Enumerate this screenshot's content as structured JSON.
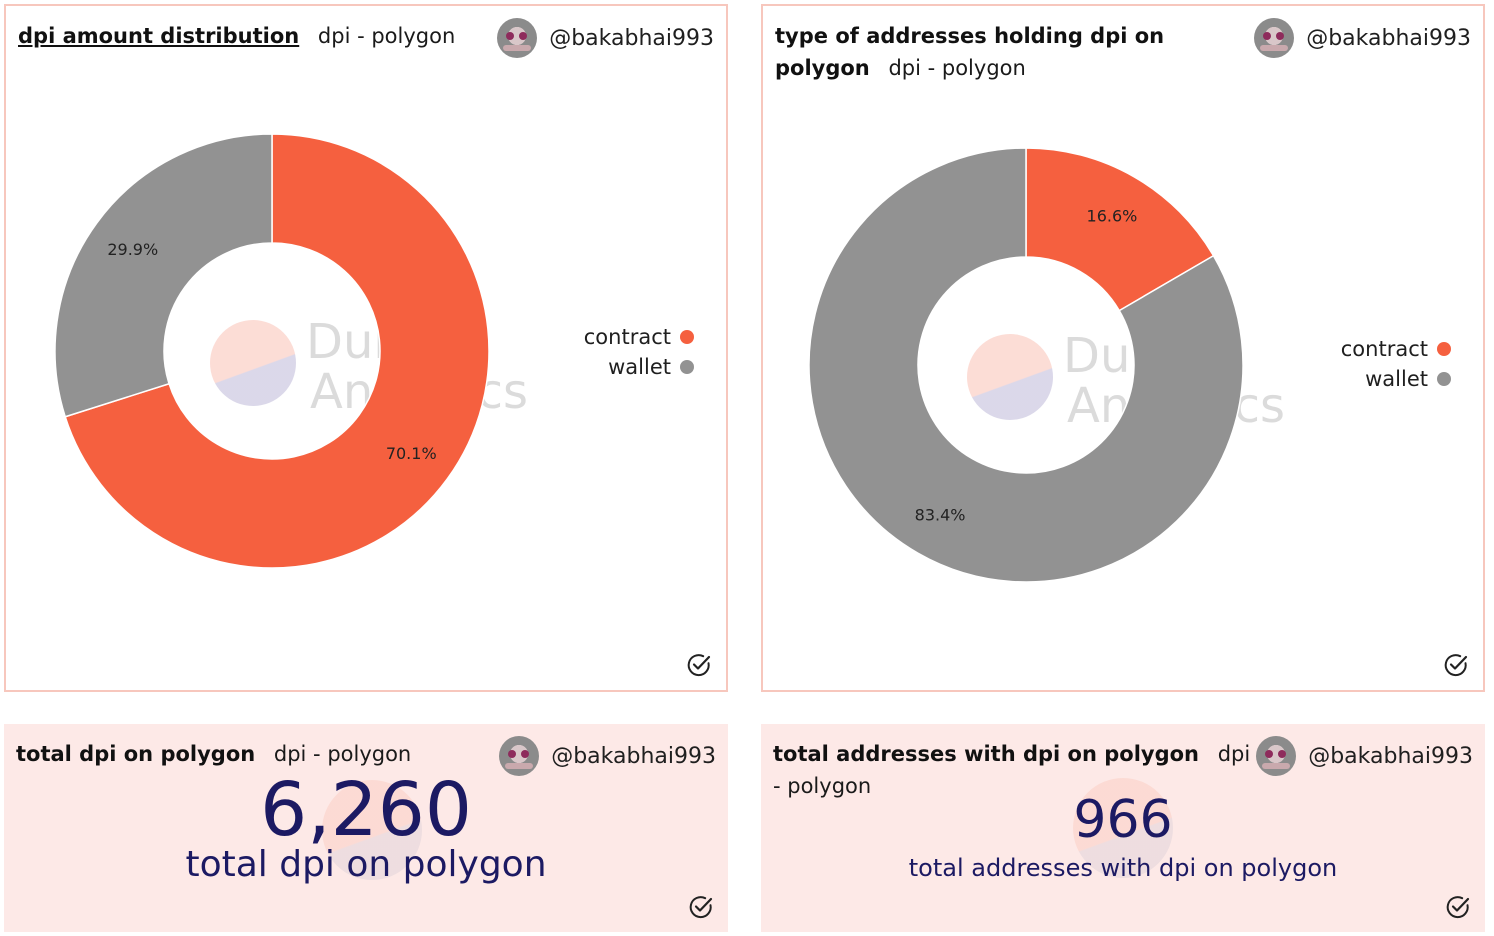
{
  "cards": [
    {
      "title": "dpi amount distribution",
      "subtitle": "dpi - polygon",
      "author": "@bakabhai993"
    },
    {
      "title": "type of addresses holding dpi on polygon",
      "subtitle": "dpi - polygon",
      "author": "@bakabhai993"
    },
    {
      "title": "total dpi on polygon",
      "subtitle": "dpi - polygon",
      "author": "@bakabhai993",
      "value": "6,260",
      "label": "total dpi on polygon"
    },
    {
      "title": "total addresses with dpi on polygon",
      "subtitle": "dpi - polygon",
      "author": "@bakabhai993",
      "value": "966",
      "label": "total addresses with dpi on polygon"
    }
  ],
  "watermark": {
    "line1": "Dune",
    "line2": "Analytics"
  },
  "colors": {
    "contract": "#f5603f",
    "wallet": "#929292",
    "counter_text": "#1c1a63"
  },
  "chart_data": [
    {
      "type": "pie",
      "title": "dpi amount distribution",
      "categories": [
        "contract",
        "wallet"
      ],
      "values": [
        70.1,
        29.9
      ],
      "labels": [
        "70.1%",
        "29.9%"
      ],
      "legend": [
        "contract",
        "wallet"
      ],
      "legend_position": "right",
      "donut": true
    },
    {
      "type": "pie",
      "title": "type of addresses holding dpi on polygon",
      "categories": [
        "contract",
        "wallet"
      ],
      "values": [
        16.6,
        83.4
      ],
      "labels": [
        "16.6%",
        "83.4%"
      ],
      "legend": [
        "contract",
        "wallet"
      ],
      "legend_position": "right",
      "donut": true
    }
  ]
}
